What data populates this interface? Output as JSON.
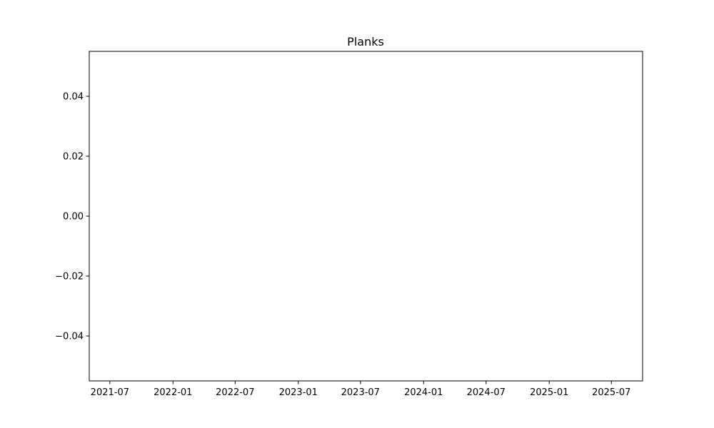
{
  "chart_data": {
    "type": "line",
    "title": "Planks",
    "xlabel": "",
    "ylabel": "",
    "series": [],
    "x_axis": {
      "scale": "date",
      "xlim": [
        "2021-05-02",
        "2025-09-30"
      ],
      "ticks": [
        "2021-07",
        "2022-01",
        "2022-07",
        "2023-01",
        "2023-07",
        "2024-01",
        "2024-07",
        "2025-01",
        "2025-07"
      ]
    },
    "y_axis": {
      "ylim": [
        -0.055,
        0.055
      ],
      "ticks": [
        0.04,
        0.02,
        0.0,
        -0.02,
        -0.04
      ],
      "tick_labels": [
        "0.04",
        "0.02",
        "0.00",
        "−0.02",
        "−0.04"
      ]
    },
    "grid": false,
    "legend": "none",
    "colors": {
      "axes": "#000000",
      "background": "#ffffff"
    }
  }
}
